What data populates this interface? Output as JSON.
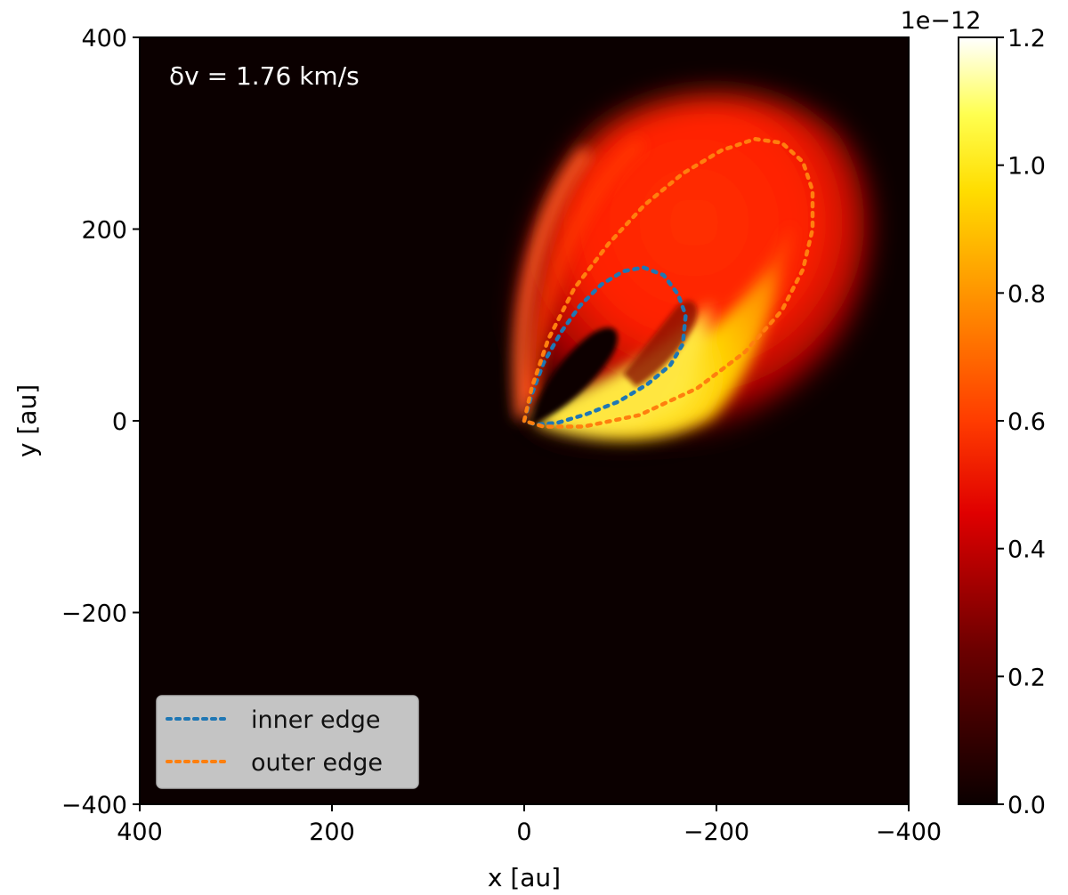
{
  "chart_data": [
    {
      "type": "heatmap",
      "title": "",
      "xlabel": "x [au]",
      "ylabel": "y [au]",
      "xlim": [
        400,
        -400
      ],
      "ylim": [
        -400,
        400
      ],
      "xticks": [
        400,
        200,
        0,
        -200,
        -400
      ],
      "yticks": [
        400,
        200,
        0,
        -200,
        -400
      ],
      "annotation": "δv = 1.76 km/s",
      "colormap": "hot",
      "colorbar": {
        "range": [
          0.0,
          1.2
        ],
        "ticks": [
          0.0,
          0.2,
          0.4,
          0.6,
          0.8,
          1.0,
          1.2
        ],
        "scale_label": "1e−12"
      },
      "legend_position": "lower-left",
      "series": [
        {
          "name": "inner edge",
          "color": "#1f77b4",
          "style": "dotted",
          "x": [
            0,
            -8,
            -20,
            -38,
            -58,
            -80,
            -103,
            -124,
            -145,
            -160,
            -168,
            -165,
            -152,
            -128,
            -98,
            -65,
            -35,
            -12,
            0
          ],
          "y": [
            0,
            28,
            60,
            92,
            120,
            142,
            156,
            160,
            152,
            132,
            110,
            80,
            58,
            38,
            20,
            7,
            -2,
            -4,
            0
          ]
        },
        {
          "name": "outer edge",
          "color": "#ff7f0e",
          "style": "dotted",
          "x": [
            0,
            -8,
            -25,
            -52,
            -88,
            -125,
            -165,
            -205,
            -240,
            -268,
            -290,
            -300,
            -300,
            -290,
            -268,
            -230,
            -180,
            -120,
            -62,
            -20,
            0
          ],
          "y": [
            0,
            35,
            85,
            138,
            185,
            225,
            258,
            282,
            294,
            290,
            270,
            240,
            200,
            158,
            115,
            72,
            34,
            6,
            -6,
            -6,
            0
          ]
        }
      ]
    }
  ]
}
